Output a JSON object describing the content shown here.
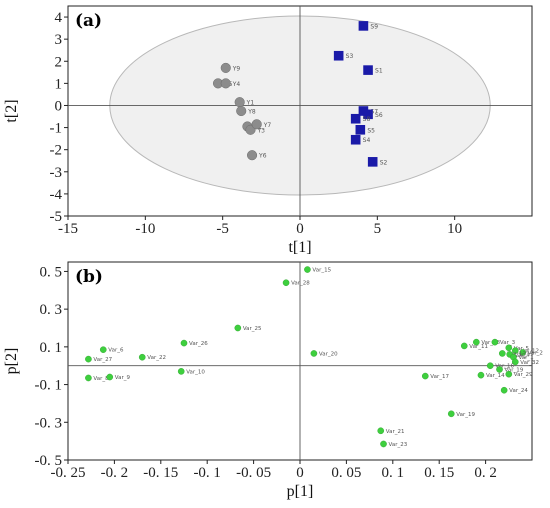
{
  "chart_data": [
    {
      "type": "scatter",
      "panel_label": "(a)",
      "xlabel": "t[1]",
      "ylabel": "t[2]",
      "xlim": [
        -15,
        15
      ],
      "ylim": [
        -5,
        4.5
      ],
      "xticks": [
        -15,
        -10,
        -5,
        0,
        5,
        10
      ],
      "yticks": [
        -5,
        -4,
        -3,
        -2,
        -1,
        0,
        1,
        2,
        3,
        4
      ],
      "grid": false,
      "zero_lines": true,
      "confidence_ellipse": {
        "center": [
          0,
          0
        ],
        "radii": [
          12.3,
          4.05
        ]
      },
      "colors": {
        "Y": "#8c8c8c",
        "S": "#1a1aa8"
      },
      "series": [
        {
          "group": "Y",
          "marker": "circle",
          "points": [
            {
              "label": "Y9",
              "x": -4.8,
              "y": 1.7
            },
            {
              "label": "Y5",
              "x": -5.3,
              "y": 1.0
            },
            {
              "label": "Y4",
              "x": -4.8,
              "y": 1.0
            },
            {
              "label": "Y1",
              "x": -3.9,
              "y": 0.15
            },
            {
              "label": "Y8",
              "x": -3.8,
              "y": -0.25
            },
            {
              "label": "Y2",
              "x": -3.4,
              "y": -0.95
            },
            {
              "label": "Y3",
              "x": -3.2,
              "y": -1.1
            },
            {
              "label": "Y7",
              "x": -2.8,
              "y": -0.85
            },
            {
              "label": "Y6",
              "x": -3.1,
              "y": -2.25
            }
          ]
        },
        {
          "group": "S",
          "marker": "square",
          "points": [
            {
              "label": "S9",
              "x": 4.1,
              "y": 3.6
            },
            {
              "label": "S3",
              "x": 2.5,
              "y": 2.25
            },
            {
              "label": "S1",
              "x": 4.4,
              "y": 1.6
            },
            {
              "label": "S7",
              "x": 4.1,
              "y": -0.25
            },
            {
              "label": "S6",
              "x": 4.4,
              "y": -0.4
            },
            {
              "label": "S8",
              "x": 3.6,
              "y": -0.6
            },
            {
              "label": "S5",
              "x": 3.9,
              "y": -1.1
            },
            {
              "label": "S4",
              "x": 3.6,
              "y": -1.55
            },
            {
              "label": "S2",
              "x": 4.7,
              "y": -2.55
            }
          ]
        }
      ]
    },
    {
      "type": "scatter",
      "panel_label": "(b)",
      "xlabel": "p[1]",
      "ylabel": "p[2]",
      "xlim": [
        -0.25,
        0.25
      ],
      "ylim": [
        -0.5,
        0.55
      ],
      "xticks": [
        -0.25,
        -0.2,
        -0.15,
        -0.1,
        -0.05,
        0,
        0.05,
        0.1,
        0.15,
        0.2
      ],
      "xtick_labels": [
        "-0. 25",
        "-0. 2",
        "-0. 15",
        "-0. 1",
        "-0. 05",
        "0",
        "0. 05",
        "0. 1",
        "0. 15",
        "0. 2"
      ],
      "yticks": [
        -0.5,
        -0.3,
        -0.1,
        0.1,
        0.3,
        0.5
      ],
      "ytick_labels": [
        "-0. 5",
        "-0. 3",
        "-0. 1",
        "0. 1",
        "0. 3",
        "0. 5"
      ],
      "grid": false,
      "zero_lines": true,
      "color": "#3ecf3e",
      "points": [
        {
          "label": "Var_15",
          "x": 0.008,
          "y": 0.51
        },
        {
          "label": "Var_28",
          "x": -0.015,
          "y": 0.44
        },
        {
          "label": "Var_25",
          "x": -0.067,
          "y": 0.2
        },
        {
          "label": "Var_26",
          "x": -0.125,
          "y": 0.12
        },
        {
          "label": "Var_20",
          "x": 0.015,
          "y": 0.065
        },
        {
          "label": "Var_6",
          "x": -0.212,
          "y": 0.085
        },
        {
          "label": "Var_27",
          "x": -0.228,
          "y": 0.035
        },
        {
          "label": "Var_22",
          "x": -0.17,
          "y": 0.045
        },
        {
          "label": "Var_10",
          "x": -0.128,
          "y": -0.03
        },
        {
          "label": "Var_8",
          "x": -0.228,
          "y": -0.065
        },
        {
          "label": "Var_9",
          "x": -0.205,
          "y": -0.06
        },
        {
          "label": "Var_18",
          "x": 0.19,
          "y": 0.125
        },
        {
          "label": "Var_11",
          "x": 0.177,
          "y": 0.105
        },
        {
          "label": "Var_3",
          "x": 0.21,
          "y": 0.125
        },
        {
          "label": "Var_5",
          "x": 0.225,
          "y": 0.095
        },
        {
          "label": "Var_12",
          "x": 0.232,
          "y": 0.08
        },
        {
          "label": "Var_2",
          "x": 0.24,
          "y": 0.07
        },
        {
          "label": "Var_13",
          "x": 0.218,
          "y": 0.065
        },
        {
          "label": "Var_4",
          "x": 0.226,
          "y": 0.06
        },
        {
          "label": "Var_1",
          "x": 0.23,
          "y": 0.045
        },
        {
          "label": "Var_32",
          "x": 0.232,
          "y": 0.02
        },
        {
          "label": "Var_16",
          "x": 0.205,
          "y": 0.0
        },
        {
          "label": "Var_19",
          "x": 0.215,
          "y": -0.02
        },
        {
          "label": "Var_29",
          "x": 0.225,
          "y": -0.045
        },
        {
          "label": "Var_14",
          "x": 0.195,
          "y": -0.05
        },
        {
          "label": "Var_17",
          "x": 0.135,
          "y": -0.055
        },
        {
          "label": "Var_24",
          "x": 0.22,
          "y": -0.13
        },
        {
          "label": "Var_19",
          "x": 0.163,
          "y": -0.255
        },
        {
          "label": "Var_21",
          "x": 0.087,
          "y": -0.345
        },
        {
          "label": "Var_23",
          "x": 0.09,
          "y": -0.415
        }
      ]
    }
  ]
}
